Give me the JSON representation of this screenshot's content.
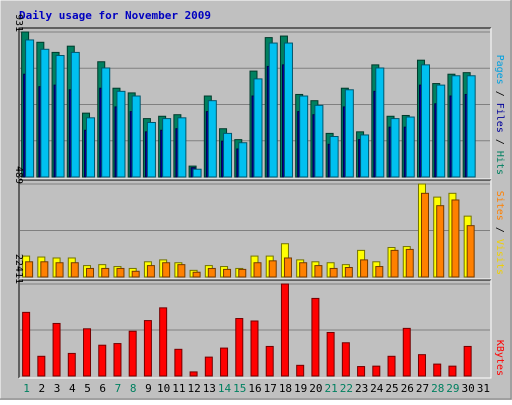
{
  "chart_data": [
    {
      "type": "bar",
      "title": "Daily usage for November 2009",
      "categories": [
        "1",
        "2",
        "3",
        "4",
        "5",
        "6",
        "7",
        "8",
        "9",
        "10",
        "11",
        "12",
        "13",
        "14",
        "15",
        "16",
        "17",
        "18",
        "19",
        "20",
        "21",
        "22",
        "23",
        "24",
        "25",
        "26",
        "27",
        "28",
        "29",
        "30",
        "31"
      ],
      "weekend_days": [
        "1",
        "7",
        "8",
        "14",
        "15",
        "21",
        "22",
        "28",
        "29"
      ],
      "y_max_label": "931",
      "ylim": [
        0,
        931
      ],
      "axis_label_parts": [
        {
          "text": "Pages",
          "color": "#00a0e0"
        },
        {
          "text": " / ",
          "color": "#000000"
        },
        {
          "text": "Files",
          "color": "#00009a"
        },
        {
          "text": " / ",
          "color": "#000000"
        },
        {
          "text": "Hits",
          "color": "#008060"
        }
      ],
      "series": [
        {
          "name": "Hits",
          "color": "#008060",
          "values": [
            931,
            865,
            800,
            840,
            410,
            740,
            570,
            540,
            375,
            390,
            400,
            70,
            520,
            310,
            240,
            680,
            895,
            905,
            530,
            490,
            280,
            570,
            290,
            720,
            390,
            395,
            750,
            600,
            660,
            670,
            null
          ]
        },
        {
          "name": "Files",
          "color": "#00009a",
          "values": [
            660,
            580,
            590,
            560,
            300,
            570,
            450,
            420,
            290,
            300,
            310,
            60,
            420,
            230,
            180,
            520,
            710,
            720,
            420,
            400,
            210,
            450,
            240,
            550,
            320,
            320,
            590,
            470,
            520,
            530,
            null
          ]
        },
        {
          "name": "Pages",
          "color": "#00c0f0",
          "values": [
            880,
            820,
            780,
            800,
            380,
            700,
            550,
            520,
            350,
            375,
            380,
            50,
            490,
            280,
            220,
            630,
            860,
            860,
            520,
            460,
            260,
            560,
            270,
            700,
            375,
            385,
            720,
            590,
            650,
            650,
            null
          ]
        }
      ]
    },
    {
      "type": "bar",
      "categories": [
        "1",
        "2",
        "3",
        "4",
        "5",
        "6",
        "7",
        "8",
        "9",
        "10",
        "11",
        "12",
        "13",
        "14",
        "15",
        "16",
        "17",
        "18",
        "19",
        "20",
        "21",
        "22",
        "23",
        "24",
        "25",
        "26",
        "27",
        "28",
        "29",
        "30",
        "31"
      ],
      "y_max_label": "489",
      "ylim": [
        0,
        489
      ],
      "axis_label_parts": [
        {
          "text": "Sites",
          "color": "#ff8000"
        },
        {
          "text": " / ",
          "color": "#000000"
        },
        {
          "text": "Visits",
          "color": "#f0d000"
        }
      ],
      "series": [
        {
          "name": "Visits",
          "color": "#ffff00",
          "values": [
            110,
            105,
            100,
            100,
            60,
            65,
            55,
            45,
            80,
            90,
            75,
            35,
            60,
            55,
            45,
            110,
            110,
            175,
            90,
            80,
            75,
            65,
            140,
            80,
            155,
            160,
            489,
            420,
            440,
            320,
            null
          ]
        },
        {
          "name": "Sites",
          "color": "#ff8000",
          "values": [
            80,
            80,
            75,
            75,
            45,
            45,
            45,
            30,
            60,
            75,
            65,
            25,
            45,
            40,
            40,
            75,
            85,
            100,
            75,
            60,
            45,
            50,
            90,
            55,
            140,
            145,
            440,
            375,
            405,
            270,
            null
          ]
        }
      ]
    },
    {
      "type": "bar",
      "categories": [
        "1",
        "2",
        "3",
        "4",
        "5",
        "6",
        "7",
        "8",
        "9",
        "10",
        "11",
        "12",
        "13",
        "14",
        "15",
        "16",
        "17",
        "18",
        "19",
        "20",
        "21",
        "22",
        "23",
        "24",
        "25",
        "26",
        "27",
        "28",
        "29",
        "30",
        "31"
      ],
      "y_max_label": "22411",
      "ylim": [
        0,
        22411
      ],
      "axis_label_parts": [
        {
          "text": "KBytes",
          "color": "#ff0000"
        }
      ],
      "series": [
        {
          "name": "KBytes",
          "color": "#ff0000",
          "values": [
            15500,
            4800,
            12800,
            5500,
            11500,
            7500,
            7900,
            10900,
            13500,
            16600,
            6500,
            1000,
            4600,
            6800,
            14000,
            13400,
            7200,
            22411,
            2600,
            18900,
            10600,
            8100,
            2300,
            2400,
            4800,
            11600,
            5200,
            2900,
            2400,
            7200,
            null
          ]
        }
      ]
    }
  ]
}
